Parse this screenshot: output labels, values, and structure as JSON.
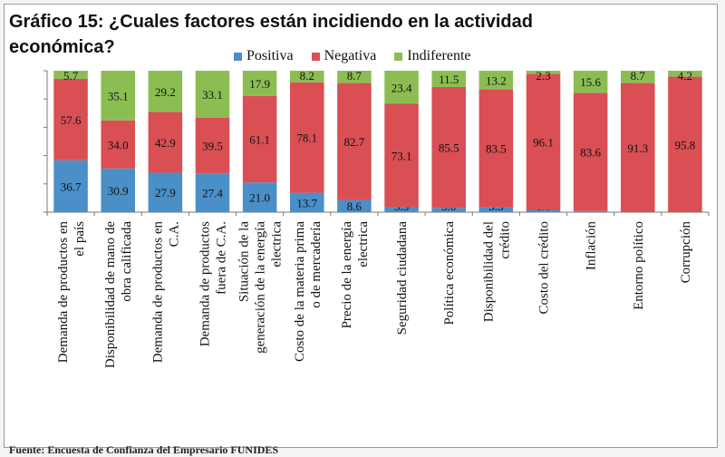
{
  "chart_data": {
    "type": "bar",
    "stacked": true,
    "title": "Gráfico 15: ¿Cuales factores están incidiendo en la actividad económica?",
    "categories": [
      "Demanda de productos en el país",
      "Disponibilidad de mano de obra calificada",
      "Demanda de productos en C.A.",
      "Demanda de productos fuera de C.A.",
      "Situación de la generación de la energía electrica",
      "Costo de la materia prima o de mercadería",
      "Precio de la energía electrica",
      "Seguridad ciudadana",
      "Política económica",
      "Disponibilidad del crédito",
      "Costo del crédito",
      "Inflación",
      "Entorno político",
      "Corrupción"
    ],
    "series": [
      {
        "name": "Positiva",
        "color": "#4a8fc8",
        "values": [
          36.7,
          30.9,
          27.9,
          27.4,
          21.0,
          13.7,
          8.6,
          3.5,
          3.0,
          3.3,
          1.6,
          0.8,
          0.0,
          0.0
        ]
      },
      {
        "name": "Negativa",
        "color": "#d94f54",
        "values": [
          57.6,
          34.0,
          42.9,
          39.5,
          61.1,
          78.1,
          82.7,
          73.1,
          85.5,
          83.5,
          96.1,
          83.6,
          91.3,
          95.8
        ]
      },
      {
        "name": "Indiferente",
        "color": "#8cbd53",
        "values": [
          5.7,
          35.1,
          29.2,
          33.1,
          17.9,
          8.2,
          8.7,
          23.4,
          11.5,
          13.2,
          2.3,
          15.6,
          8.7,
          4.2
        ]
      }
    ],
    "ylim": [
      0,
      100
    ],
    "legend": "top",
    "grid": false
  },
  "source": "Fuente: Encuesta de Confianza del Empresario FUNIDES"
}
